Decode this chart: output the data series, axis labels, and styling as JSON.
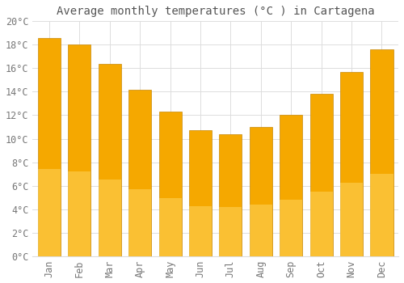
{
  "title": "Average monthly temperatures (°C ) in Cartagena",
  "months": [
    "Jan",
    "Feb",
    "Mar",
    "Apr",
    "May",
    "Jun",
    "Jul",
    "Aug",
    "Sep",
    "Oct",
    "Nov",
    "Dec"
  ],
  "values": [
    18.6,
    18.0,
    16.4,
    14.2,
    12.3,
    10.7,
    10.4,
    11.0,
    12.0,
    13.8,
    15.7,
    17.6
  ],
  "bar_color_top": "#F5A800",
  "bar_color_bottom": "#FFD966",
  "bar_edge_color": "#C8890A",
  "background_color": "#FFFFFF",
  "plot_bg_color": "#FFFFFF",
  "grid_color": "#DDDDDD",
  "text_color": "#777777",
  "title_color": "#555555",
  "ylim": [
    0,
    20
  ],
  "yticks": [
    0,
    2,
    4,
    6,
    8,
    10,
    12,
    14,
    16,
    18,
    20
  ],
  "title_fontsize": 10,
  "tick_fontsize": 8.5
}
